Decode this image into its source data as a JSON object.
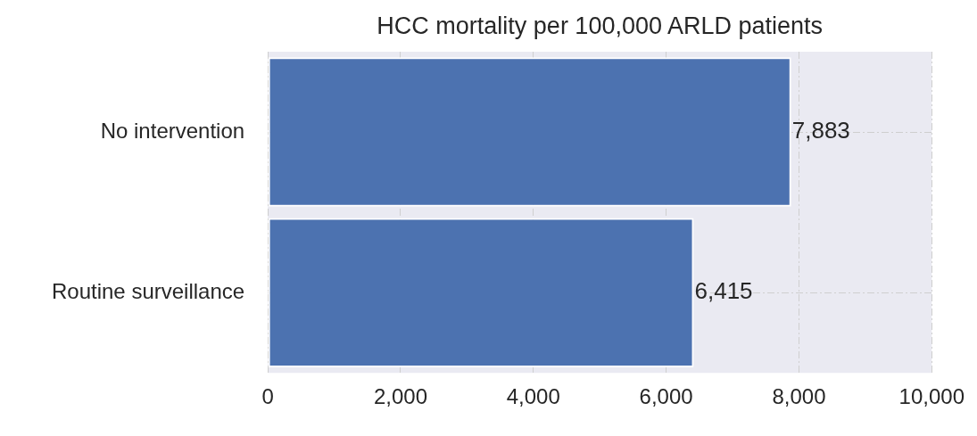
{
  "chart_data": {
    "type": "bar",
    "orientation": "horizontal",
    "title": "HCC mortality per 100,000 ARLD patients",
    "categories": [
      "No intervention",
      "Routine surveillance"
    ],
    "values": [
      7883,
      6415
    ],
    "color": "#4c72b0",
    "xlim": [
      0,
      10000
    ],
    "xticks": [
      0,
      {
        "value": 2000,
        "label": "2,000"
      },
      {
        "value": 4000,
        "label": "4,000"
      },
      {
        "value": 6000,
        "label": "6,000"
      },
      {
        "value": 8000,
        "label": "8,000"
      },
      {
        "value": 10000,
        "label": "10,000"
      }
    ],
    "grid": true,
    "value_labels": [
      "7,883",
      "6,415"
    ]
  }
}
